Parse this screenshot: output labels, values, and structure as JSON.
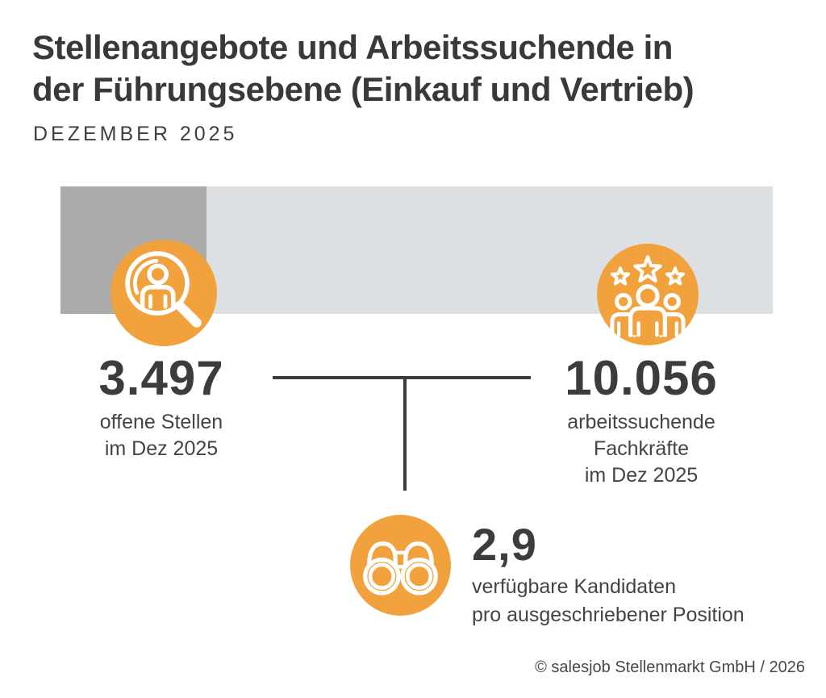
{
  "header": {
    "title_line1": "Stellenangebote und Arbeitssuchende in",
    "title_line2": "der Führungsebene (Einkauf und Vertrieb)",
    "subtitle": "DEZEMBER 2025"
  },
  "chart_data": {
    "type": "bar",
    "title": "Stellenangebote und Arbeitssuchende in der Führungsebene (Einkauf und Vertrieb)",
    "subtitle": "Dezember 2025",
    "series": [
      {
        "name": "offene Stellen im Dez 2025",
        "value": 3497,
        "color": "#ababab"
      },
      {
        "name": "arbeitssuchende Fachkräfte im Dez 2025",
        "value": 10056,
        "color": "#dde0e3"
      }
    ],
    "derived_metric": {
      "value": 2.9,
      "label": "verfügbare Kandidaten pro ausgeschriebener Position"
    },
    "bar_dark_fraction": 0.205,
    "orientation": "horizontal",
    "grid": false,
    "legend": false
  },
  "stats": {
    "open_positions": {
      "value": "3.497",
      "label_line1": "offene Stellen",
      "label_line2": "im Dez 2025",
      "icon": "search-person-icon"
    },
    "job_seekers": {
      "value": "10.056",
      "label_line1": "arbeitssuchende",
      "label_line2": "Fachkräfte",
      "label_line3": "im Dez 2025",
      "icon": "team-stars-icon"
    },
    "candidates_per_position": {
      "value": "2,9",
      "label_line1": "verfügbare Kandidaten",
      "label_line2": "pro ausgeschriebener Position",
      "icon": "binoculars-icon"
    }
  },
  "footer": {
    "copyright": "© salesjob Stellenmarkt GmbH / 2026"
  },
  "colors": {
    "accent_orange": "#f1a23d",
    "bar_dark_gray": "#ababab",
    "bar_light_gray": "#dde0e3",
    "text_dark": "#3a3c3e",
    "connector_line": "#393b3d"
  }
}
